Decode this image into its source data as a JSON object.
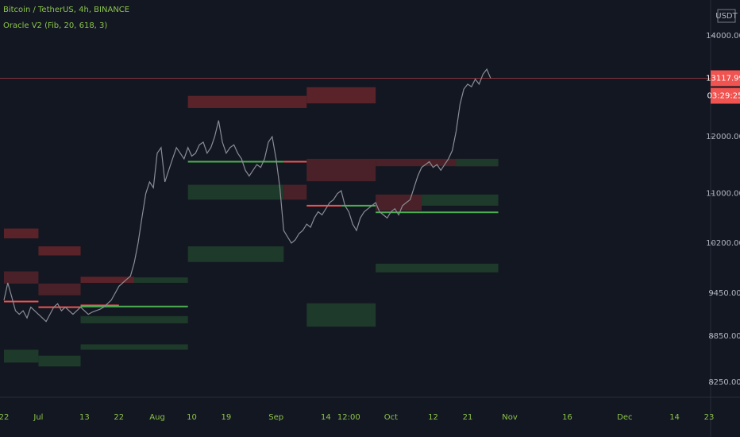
{
  "chart_data": {
    "type": "line",
    "title": "Bitcoin / TetherUS, 4h, BINANCE",
    "subtitle": "Oracle V2 (Fib, 20, 618, 3)",
    "currency": "USDT",
    "log": true,
    "color": "#8a8d96",
    "categories": [
      "22",
      null,
      null,
      null,
      null,
      null,
      null,
      null,
      null,
      "Jul",
      null,
      null,
      null,
      null,
      null,
      null,
      null,
      null,
      null,
      null,
      null,
      "13",
      null,
      null,
      null,
      null,
      null,
      null,
      null,
      null,
      "22",
      null,
      null,
      null,
      null,
      null,
      null,
      null,
      null,
      null,
      "Aug",
      null,
      null,
      null,
      null,
      null,
      null,
      null,
      null,
      "10",
      null,
      null,
      null,
      null,
      null,
      null,
      null,
      null,
      "19",
      null,
      null,
      null,
      null,
      null,
      null,
      null,
      null,
      null,
      null,
      null,
      null,
      "Sep",
      null,
      null,
      null,
      null,
      null,
      null,
      null,
      null,
      null,
      null,
      null,
      null,
      "14",
      null,
      null,
      null,
      null,
      null,
      "12:00",
      null,
      null,
      null,
      null,
      null,
      null,
      null,
      null,
      null,
      null,
      "Oct",
      null,
      null,
      null,
      null,
      null,
      null,
      null,
      null,
      null,
      null,
      "12",
      null,
      null,
      null,
      null,
      null,
      null,
      null,
      null,
      "21",
      null,
      null,
      null,
      null,
      null,
      null,
      null,
      null,
      null,
      null,
      "Nov",
      null,
      null,
      null,
      null,
      null,
      null,
      null,
      null,
      null,
      null,
      null,
      null,
      null,
      null,
      "16",
      null,
      null,
      null,
      null,
      null,
      null,
      null,
      null,
      null,
      null,
      null,
      null,
      null,
      null,
      "Dec",
      null,
      null,
      null,
      null,
      null,
      null,
      null,
      null,
      null,
      null,
      null,
      null,
      "14",
      null,
      null,
      null,
      null,
      null,
      null,
      null,
      null,
      "23"
    ],
    "values": [
      9350,
      9600,
      9400,
      9200,
      9150,
      9200,
      9100,
      9250,
      9200,
      9150,
      9100,
      9050,
      9150,
      9250,
      9300,
      9200,
      9250,
      9200,
      9150,
      9200,
      9250,
      9200,
      9150,
      9180,
      9200,
      9220,
      9250,
      9300,
      9350,
      9450,
      9550,
      9600,
      9650,
      9700,
      9900,
      10200,
      10600,
      11000,
      11200,
      11100,
      11700,
      11800,
      11200,
      11400,
      11600,
      11800,
      11700,
      11600,
      11800,
      11650,
      11700,
      11850,
      11900,
      11700,
      11800,
      12000,
      12300,
      11900,
      11700,
      11800,
      11850,
      11700,
      11600,
      11400,
      11300,
      11400,
      11500,
      11450,
      11600,
      11900,
      12000,
      11600,
      11100,
      10400,
      10300,
      10200,
      10250,
      10350,
      10400,
      10500,
      10450,
      10600,
      10700,
      10650,
      10750,
      10850,
      10900,
      11000,
      11050,
      10800,
      10700,
      10500,
      10400,
      10600,
      10700,
      10750,
      10800,
      10850,
      10700,
      10650,
      10600,
      10700,
      10750,
      10650,
      10800,
      10850,
      10900,
      11100,
      11300,
      11450,
      11500,
      11550,
      11450,
      11500,
      11400,
      11500,
      11600,
      11750,
      12100,
      12600,
      12900,
      13000,
      12950,
      13100,
      13000,
      13200,
      13300,
      13118,
      null,
      null,
      null,
      null,
      null,
      null,
      null,
      null,
      null,
      null,
      null,
      null,
      null,
      null,
      null,
      null,
      null,
      null,
      null,
      null,
      null,
      null,
      null,
      null,
      null,
      null,
      null,
      null,
      null,
      null,
      null,
      null,
      null,
      null,
      null,
      null,
      null,
      null,
      null,
      null,
      null,
      null,
      null,
      null,
      null,
      null,
      null,
      null,
      null,
      null,
      null,
      null,
      null,
      null,
      null,
      null,
      null
    ],
    "ylim": [
      8062,
      14782
    ],
    "yticks": [
      {
        "value": 8250,
        "label": "8250.00"
      },
      {
        "value": 8850,
        "label": "8850.00"
      },
      {
        "value": 9450,
        "label": "9450.00"
      },
      {
        "value": 10200,
        "label": "10200.00"
      },
      {
        "value": 11000,
        "label": "11000.00"
      },
      {
        "value": 12000,
        "label": "12000.00"
      },
      {
        "value": 14000,
        "label": "14000.00"
      }
    ],
    "last_price": 13117.99,
    "last_price_color": "#f05350",
    "countdown": "03:29:25",
    "zones": [
      {
        "start": 0,
        "end": 9,
        "low": 10275,
        "high": 10430,
        "color": "#5a2329"
      },
      {
        "start": 9,
        "end": 20,
        "low": 10010,
        "high": 10150,
        "color": "#5a2329"
      },
      {
        "start": 0,
        "end": 9,
        "low": 9590,
        "high": 9770,
        "color": "#4a2128"
      },
      {
        "start": 9,
        "end": 20,
        "low": 9420,
        "high": 9590,
        "color": "#4a2128"
      },
      {
        "start": 20,
        "end": 34,
        "low": 9600,
        "high": 9690,
        "color": "#5a2329"
      },
      {
        "start": 48,
        "end": 79,
        "low": 12535,
        "high": 12770,
        "color": "#5a2329"
      },
      {
        "start": 79,
        "end": 97,
        "low": 12625,
        "high": 12940,
        "color": "#5a2329"
      },
      {
        "start": 79,
        "end": 97,
        "low": 11210,
        "high": 11600,
        "color": "#4a2128"
      },
      {
        "start": 73,
        "end": 79,
        "low": 10900,
        "high": 11150,
        "color": "#4a2128"
      },
      {
        "start": 97,
        "end": 129,
        "low": 11470,
        "high": 11600,
        "color": "#4a2128"
      },
      {
        "start": 97,
        "end": 109,
        "low": 10720,
        "high": 10985,
        "color": "#4a2128"
      },
      {
        "start": 0,
        "end": 9,
        "low": 8500,
        "high": 8670,
        "color": "#1e3a2a"
      },
      {
        "start": 9,
        "end": 20,
        "low": 8450,
        "high": 8590,
        "color": "#1e3a2a"
      },
      {
        "start": 20,
        "end": 48,
        "low": 9025,
        "high": 9125,
        "color": "#1e3a2a"
      },
      {
        "start": 20,
        "end": 48,
        "low": 8670,
        "high": 8740,
        "color": "#1e3a2a"
      },
      {
        "start": 34,
        "end": 48,
        "low": 9600,
        "high": 9680,
        "color": "#1e3a2a"
      },
      {
        "start": 48,
        "end": 73,
        "low": 10900,
        "high": 11150,
        "color": "#1e3a2a"
      },
      {
        "start": 48,
        "end": 73,
        "low": 9910,
        "high": 10150,
        "color": "#1e3a2a"
      },
      {
        "start": 79,
        "end": 97,
        "low": 8980,
        "high": 9305,
        "color": "#1e3a2a"
      },
      {
        "start": 109,
        "end": 129,
        "low": 10800,
        "high": 10985,
        "color": "#1e3a2a"
      },
      {
        "start": 118,
        "end": 129,
        "low": 11470,
        "high": 11600,
        "color": "#1e3a2a"
      },
      {
        "start": 97,
        "end": 129,
        "low": 9755,
        "high": 9885,
        "color": "#1e3a2a"
      }
    ],
    "levels": [
      {
        "start": 0,
        "end": 9,
        "value": 9330,
        "color": "#ef5350"
      },
      {
        "start": 9,
        "end": 20,
        "value": 9250,
        "color": "#ef5350"
      },
      {
        "start": 20,
        "end": 30,
        "value": 9275,
        "color": "#ef5350"
      },
      {
        "start": 20,
        "end": 48,
        "value": 9260,
        "color": "#4caf50"
      },
      {
        "start": 48,
        "end": 73,
        "value": 11550,
        "color": "#4caf50"
      },
      {
        "start": 73,
        "end": 79,
        "value": 11550,
        "color": "#ef5350"
      },
      {
        "start": 79,
        "end": 88,
        "value": 10800,
        "color": "#ef5350"
      },
      {
        "start": 88,
        "end": 97,
        "value": 10800,
        "color": "#4caf50"
      },
      {
        "start": 97,
        "end": 129,
        "value": 10690,
        "color": "#4caf50"
      }
    ]
  }
}
